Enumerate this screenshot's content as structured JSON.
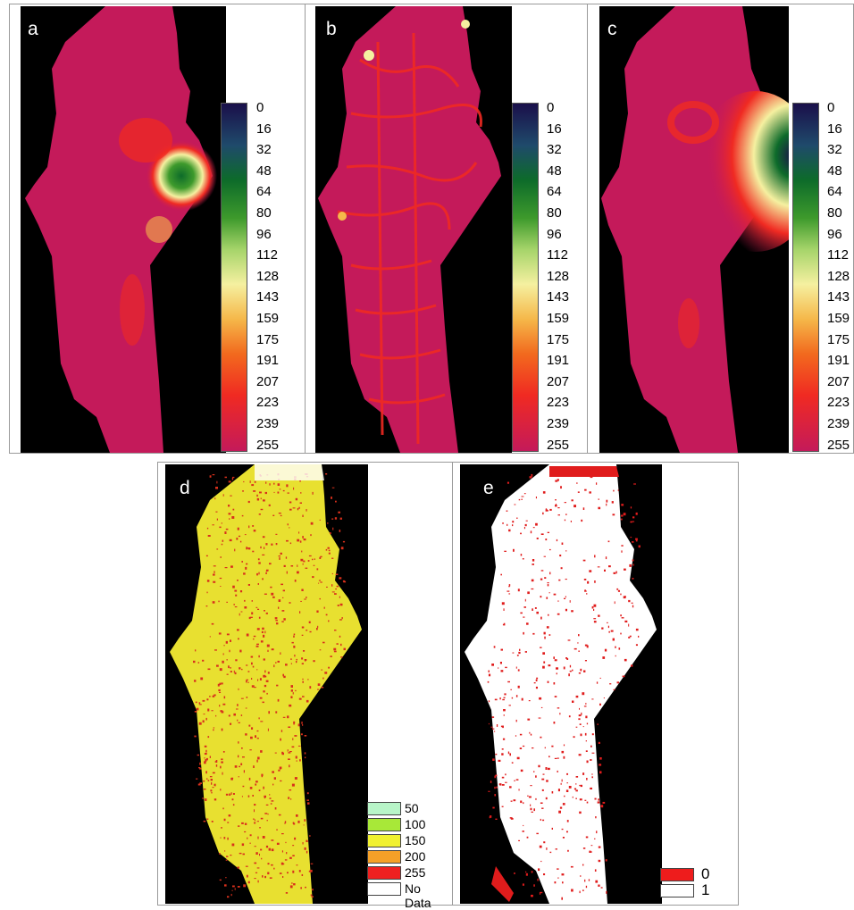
{
  "panels": {
    "a": {
      "label": "a"
    },
    "b": {
      "label": "b"
    },
    "c": {
      "label": "c"
    },
    "d": {
      "label": "d"
    },
    "e": {
      "label": "e"
    }
  },
  "colorbar_ticks": [
    "0",
    "16",
    "32",
    "48",
    "64",
    "80",
    "96",
    "112",
    "128",
    "143",
    "159",
    "175",
    "191",
    "207",
    "223",
    "239",
    "255"
  ],
  "colorbar_colors": [
    "#1a0f4a",
    "#1f4a6b",
    "#0d6b2a",
    "#3e9a2c",
    "#a6d46a",
    "#f5f0a0",
    "#f5b84a",
    "#f26a1e",
    "#f02a22",
    "#c41a5a"
  ],
  "legend_d": [
    {
      "label": "50",
      "color": "#b8f5c8"
    },
    {
      "label": "100",
      "color": "#a8e838"
    },
    {
      "label": "150",
      "color": "#f0f030"
    },
    {
      "label": "200",
      "color": "#f5a028"
    },
    {
      "label": "255",
      "color": "#ee2020"
    },
    {
      "label": "No",
      "label2": "Data",
      "color": "#ffffff"
    }
  ],
  "legend_e": [
    {
      "label": "0",
      "color": "#ee1c1c"
    },
    {
      "label": "1",
      "color": "#ffffff"
    }
  ],
  "colors": {
    "map_base": "#c41a5a",
    "background": "#000000"
  }
}
